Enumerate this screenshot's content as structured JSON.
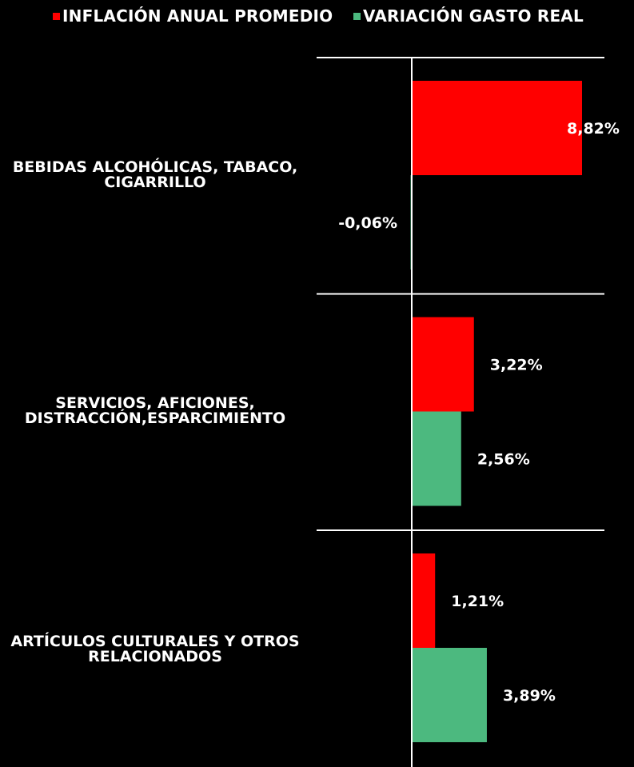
{
  "chart_data": {
    "type": "bar",
    "orientation": "horizontal",
    "categories": [
      "BEBIDAS ALCOHÓLICAS, TABACO, CIGARRILLO",
      "SERVICIOS, AFICIONES, DISTRACCIÓN,ESPARCIMIENTO",
      "ARTÍCULOS CULTURALES Y OTROS RELACIONADOS"
    ],
    "category_lines": [
      [
        "BEBIDAS ALCOHÓLICAS, TABACO,",
        "CIGARRILLO"
      ],
      [
        "SERVICIOS, AFICIONES,",
        "DISTRACCIÓN,ESPARCIMIENTO"
      ],
      [
        "ARTÍCULOS CULTURALES Y OTROS",
        "RELACIONADOS"
      ]
    ],
    "series": [
      {
        "name": "INFLACIÓN ANUAL PROMEDIO",
        "color": "#ff0000",
        "values": [
          8.82,
          3.22,
          1.21
        ],
        "labels": [
          "8,82%",
          "3,22%",
          "1,21%"
        ]
      },
      {
        "name": "VARIACIÓN GASTO REAL",
        "color": "#4cb97f",
        "values": [
          -0.06,
          2.56,
          3.89
        ],
        "labels": [
          "-0,06%",
          "2,56%",
          "3,89%"
        ]
      }
    ],
    "legend_position": "top",
    "grid": false
  }
}
